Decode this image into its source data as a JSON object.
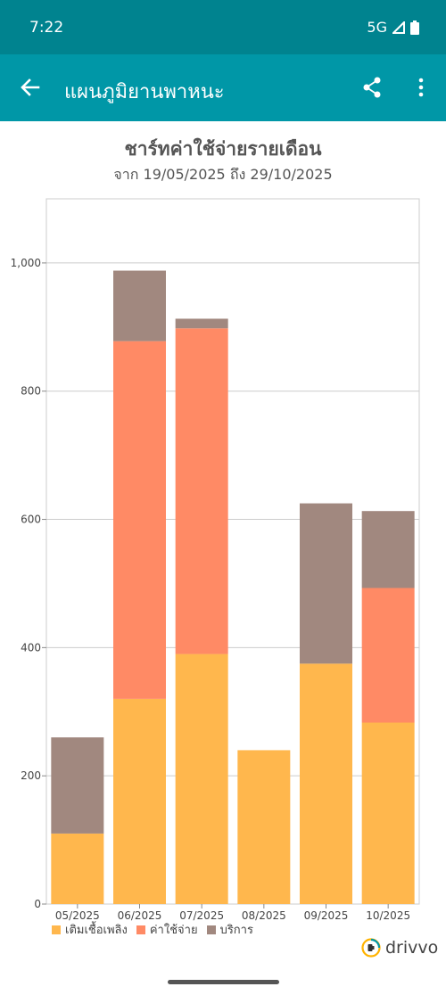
{
  "status_bar": {
    "time": "7:22",
    "network": "5G"
  },
  "app_bar": {
    "title": "แผนภูมิยานพาหนะ"
  },
  "chart_header": {
    "title": "ชาร์ทค่าใช้จ่ายรายเดือน",
    "subtitle": "จาก 19/05/2025 ถึง 29/10/2025"
  },
  "chart_data": {
    "type": "bar",
    "stacked": true,
    "categories": [
      "05/2025",
      "06/2025",
      "07/2025",
      "08/2025",
      "09/2025",
      "10/2025"
    ],
    "series": [
      {
        "name": "เติมเชื้อเพลิง",
        "color": "#ffb74d",
        "values": [
          110,
          320,
          390,
          240,
          375,
          283
        ]
      },
      {
        "name": "ค่าใช้จ่าย",
        "color": "#ff8a65",
        "values": [
          0,
          558,
          508,
          0,
          0,
          210
        ]
      },
      {
        "name": "บริการ",
        "color": "#a1887f",
        "values": [
          150,
          110,
          15,
          0,
          250,
          120
        ]
      }
    ],
    "yticks": [
      "0",
      "200",
      "400",
      "600",
      "800",
      "1,000"
    ],
    "ylim": [
      0,
      1100
    ],
    "grid": true,
    "legend_position": "bottom-left"
  },
  "brand": {
    "name": "drivvo",
    "color": "#444444"
  }
}
